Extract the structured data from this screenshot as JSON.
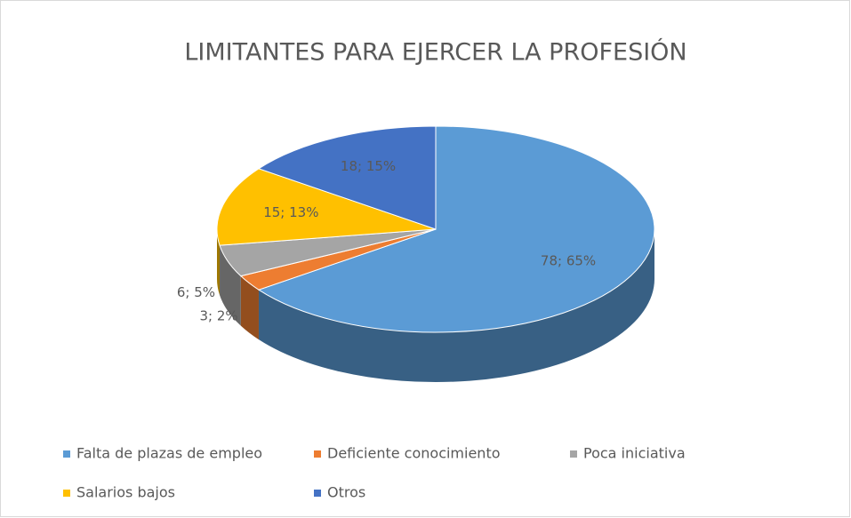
{
  "chart_data": {
    "type": "pie3d",
    "title": "LIMITANTES PARA EJERCER  LA PROFESIÓN",
    "categories": [
      "Falta de plazas de empleo",
      "Deficiente conocimiento",
      "Poca iniciativa",
      "Salarios bajos",
      "Otros"
    ],
    "values": [
      78,
      3,
      6,
      15,
      18
    ],
    "value_labels": [
      "78; 65%",
      "3; 2%",
      "6; 5%",
      "15; 13%",
      "18; 15%"
    ],
    "colors": [
      "#5b9bd5",
      "#ed7d31",
      "#a5a5a5",
      "#ffc000",
      "#4472c4"
    ],
    "legend": "bottom"
  }
}
